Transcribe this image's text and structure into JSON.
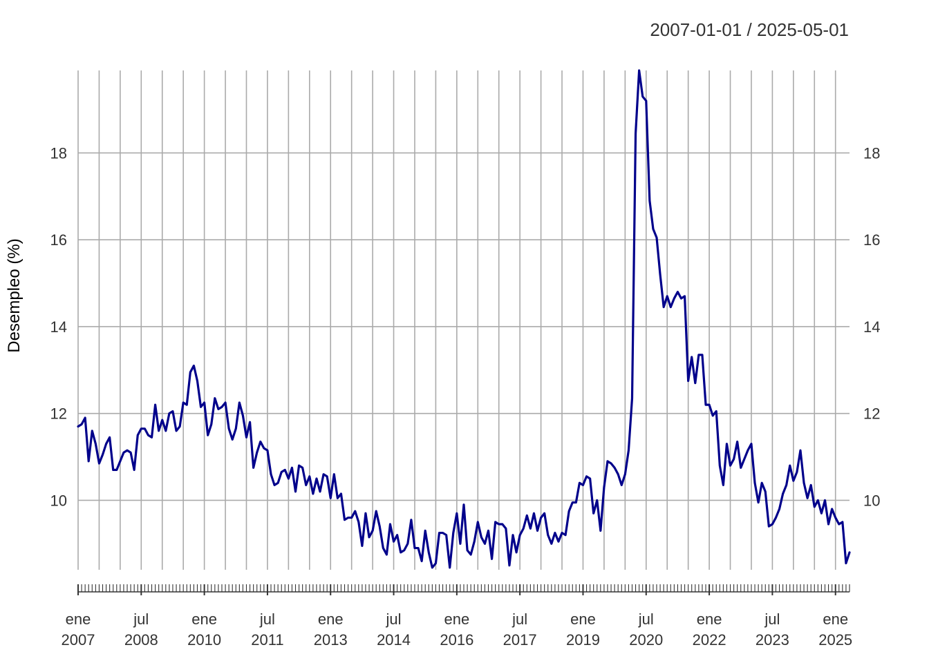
{
  "chart_data": {
    "type": "line",
    "title": "",
    "range_label": "2007-01-01 / 2025-05-01",
    "xlabel": "",
    "ylabel": "Desempleo (%)",
    "x_start": "2007-01",
    "x_end": "2025-05",
    "frequency": "monthly",
    "ylim": [
      8.4,
      19.9
    ],
    "yticks": [
      10,
      12,
      14,
      16,
      18
    ],
    "grid": true,
    "line_color": "#00008B",
    "grid_color": "#AAAAAA",
    "xticks": [
      {
        "date": "2007-01",
        "month": "ene",
        "year": "2007"
      },
      {
        "date": "2008-07",
        "month": "jul",
        "year": "2008"
      },
      {
        "date": "2010-01",
        "month": "ene",
        "year": "2010"
      },
      {
        "date": "2011-07",
        "month": "jul",
        "year": "2011"
      },
      {
        "date": "2013-01",
        "month": "ene",
        "year": "2013"
      },
      {
        "date": "2014-07",
        "month": "jul",
        "year": "2014"
      },
      {
        "date": "2016-01",
        "month": "ene",
        "year": "2016"
      },
      {
        "date": "2017-07",
        "month": "jul",
        "year": "2017"
      },
      {
        "date": "2019-01",
        "month": "ene",
        "year": "2019"
      },
      {
        "date": "2020-07",
        "month": "jul",
        "year": "2020"
      },
      {
        "date": "2022-01",
        "month": "ene",
        "year": "2022"
      },
      {
        "date": "2023-07",
        "month": "jul",
        "year": "2023"
      },
      {
        "date": "2025-01",
        "month": "ene",
        "year": "2025"
      }
    ],
    "series": [
      {
        "values": [
          11.7,
          11.75,
          11.9,
          10.9,
          11.6,
          11.3,
          10.85,
          11.05,
          11.3,
          11.45,
          10.7,
          10.7,
          10.9,
          11.1,
          11.15,
          11.1,
          10.7,
          11.5,
          11.65,
          11.65,
          11.5,
          11.45,
          12.2,
          11.6,
          11.85,
          11.6,
          12.0,
          12.05,
          11.6,
          11.7,
          12.25,
          12.2,
          12.95,
          13.1,
          12.75,
          12.15,
          12.25,
          11.5,
          11.75,
          12.35,
          12.1,
          12.15,
          12.25,
          11.65,
          11.4,
          11.65,
          12.25,
          11.95,
          11.45,
          11.8,
          10.75,
          11.1,
          11.35,
          11.2,
          11.15,
          10.6,
          10.35,
          10.4,
          10.65,
          10.7,
          10.5,
          10.75,
          10.2,
          10.8,
          10.75,
          10.35,
          10.55,
          10.15,
          10.5,
          10.2,
          10.6,
          10.55,
          10.05,
          10.6,
          10.05,
          10.15,
          9.55,
          9.6,
          9.6,
          9.75,
          9.5,
          8.95,
          9.7,
          9.15,
          9.3,
          9.75,
          9.4,
          8.9,
          8.75,
          9.45,
          9.05,
          9.2,
          8.8,
          8.85,
          9.0,
          9.55,
          8.9,
          8.9,
          8.6,
          9.3,
          8.8,
          8.45,
          8.55,
          9.25,
          9.25,
          9.2,
          8.45,
          9.25,
          9.7,
          9.0,
          9.9,
          8.85,
          8.75,
          9.05,
          9.5,
          9.15,
          9.0,
          9.3,
          8.65,
          9.5,
          9.45,
          9.45,
          9.35,
          8.5,
          9.2,
          8.8,
          9.2,
          9.35,
          9.65,
          9.35,
          9.7,
          9.3,
          9.6,
          9.7,
          9.2,
          9.0,
          9.25,
          9.05,
          9.25,
          9.2,
          9.75,
          9.95,
          9.95,
          10.4,
          10.35,
          10.55,
          10.5,
          9.7,
          10.0,
          9.3,
          10.3,
          10.9,
          10.85,
          10.75,
          10.6,
          10.35,
          10.6,
          11.15,
          12.35,
          18.45,
          19.9,
          19.3,
          19.2,
          16.9,
          16.25,
          16.05,
          15.2,
          14.45,
          14.7,
          14.45,
          14.65,
          14.8,
          14.65,
          14.7,
          12.75,
          13.3,
          12.7,
          13.35,
          13.35,
          12.2,
          12.2,
          11.95,
          12.05,
          10.8,
          10.35,
          11.3,
          10.8,
          10.95,
          11.35,
          10.75,
          10.95,
          11.15,
          11.3,
          10.4,
          9.95,
          10.4,
          10.2,
          9.4,
          9.45,
          9.6,
          9.8,
          10.15,
          10.35,
          10.8,
          10.45,
          10.65,
          11.15,
          10.4,
          10.05,
          10.35,
          9.85,
          10.0,
          9.7,
          10.0,
          9.45,
          9.8,
          9.6,
          9.45,
          9.5,
          8.55,
          8.8
        ]
      }
    ]
  }
}
